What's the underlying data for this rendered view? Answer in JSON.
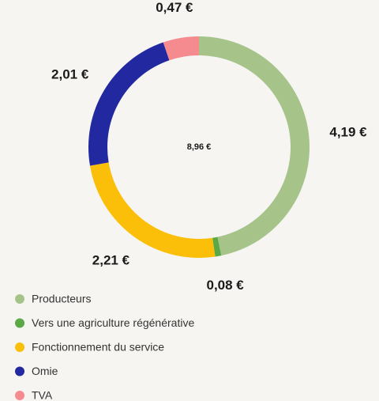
{
  "chart_data": {
    "type": "donut",
    "center_text": "8,96 €",
    "categories": [
      "Producteurs",
      "Vers une agriculture régénérative",
      "Fonctionnement du service",
      "Omie",
      "TVA"
    ],
    "values": [
      4.19,
      0.08,
      2.21,
      2.01,
      0.47
    ],
    "value_labels": [
      "4,19 €",
      "0,08 €",
      "2,21 €",
      "2,01 €",
      "0,47 €"
    ],
    "colors": [
      "#a6c48a",
      "#5aa846",
      "#fbbf0a",
      "#2229a0",
      "#f58b8f"
    ],
    "legend": "bottom-left"
  }
}
